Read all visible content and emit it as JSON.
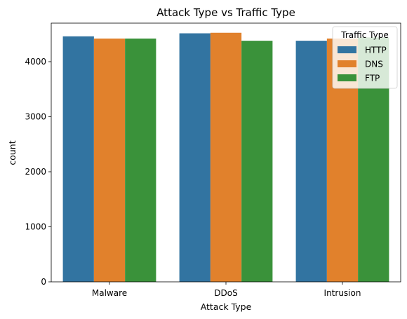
{
  "chart_data": {
    "type": "bar",
    "title": "Attack Type vs Traffic Type",
    "xlabel": "Attack Type",
    "ylabel": "count",
    "categories": [
      "Malware",
      "DDoS",
      "Intrusion"
    ],
    "series": [
      {
        "name": "HTTP",
        "color": "#3274a1",
        "values": [
          4460,
          4515,
          4380
        ]
      },
      {
        "name": "DNS",
        "color": "#e1812c",
        "values": [
          4420,
          4525,
          4420
        ]
      },
      {
        "name": "FTP",
        "color": "#3a923a",
        "values": [
          4420,
          4380,
          4440
        ]
      }
    ],
    "ylim": [
      0,
      4700
    ],
    "yticks": [
      0,
      1000,
      2000,
      3000,
      4000
    ],
    "grid": false,
    "legend": {
      "title": "Traffic Type",
      "position": "top-right"
    }
  }
}
